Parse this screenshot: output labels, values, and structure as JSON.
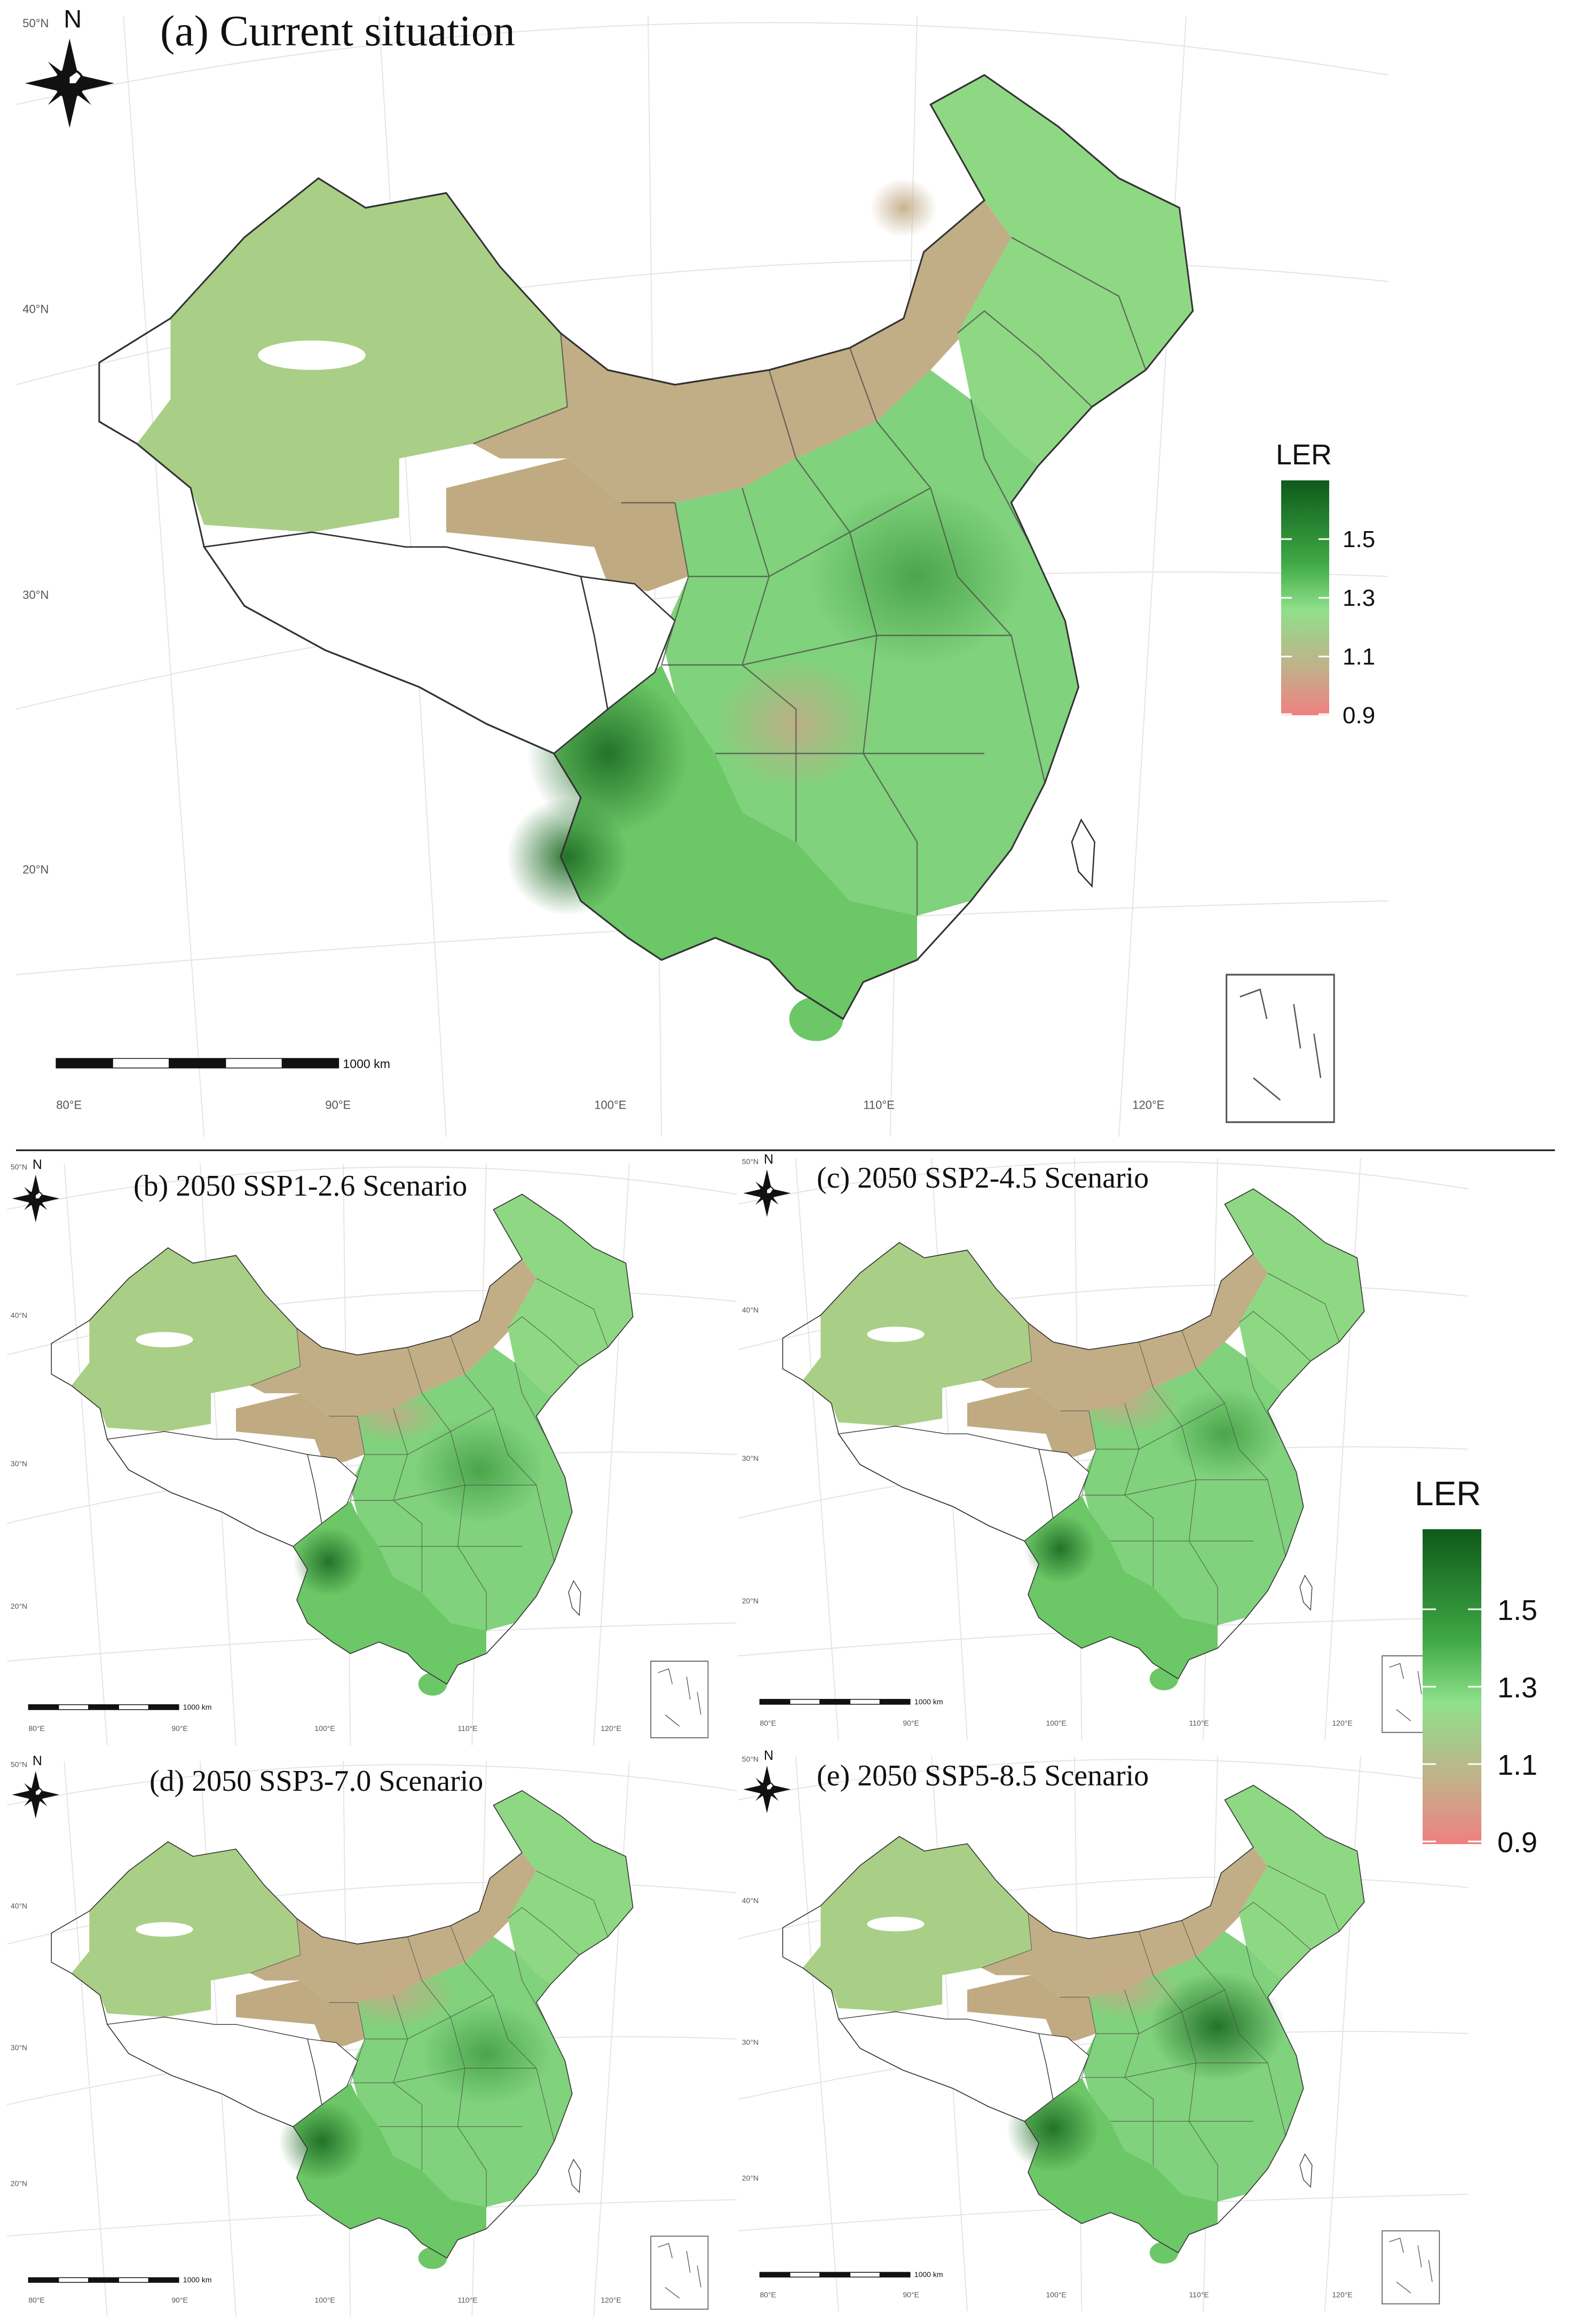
{
  "panels": [
    {
      "title": "(a) Current situation",
      "lat_labels": [
        "50°N",
        "40°N",
        "30°N",
        "20°N"
      ],
      "lon_labels": [
        "80°E",
        "90°E",
        "100°E",
        "110°E",
        "120°E"
      ],
      "scale_label": "1000 km",
      "variant": "current"
    },
    {
      "title": "(b) 2050 SSP1-2.6 Scenario",
      "lat_labels": [
        "50°N",
        "40°N",
        "30°N",
        "20°N"
      ],
      "lon_labels": [
        "80°E",
        "90°E",
        "100°E",
        "110°E",
        "120°E"
      ],
      "scale_label": "1000 km",
      "variant": "ssp126"
    },
    {
      "title": "(c) 2050 SSP2-4.5 Scenario",
      "lat_labels": [
        "50°N",
        "40°N",
        "30°N",
        "20°N"
      ],
      "lon_labels": [
        "80°E",
        "90°E",
        "100°E",
        "110°E",
        "120°E"
      ],
      "scale_label": "1000 km",
      "variant": "ssp245"
    },
    {
      "title": "(d) 2050 SSP3-7.0 Scenario",
      "lat_labels": [
        "50°N",
        "40°N",
        "30°N",
        "20°N"
      ],
      "lon_labels": [
        "80°E",
        "90°E",
        "100°E",
        "110°E",
        "120°E"
      ],
      "scale_label": "1000 km",
      "variant": "ssp370"
    },
    {
      "title": "(e) 2050 SSP5-8.5 Scenario",
      "lat_labels": [
        "50°N",
        "40°N",
        "30°N",
        "20°N"
      ],
      "lon_labels": [
        "80°E",
        "90°E",
        "100°E",
        "110°E",
        "120°E"
      ],
      "scale_label": "1000 km",
      "variant": "ssp585"
    }
  ],
  "compass_label": "N",
  "legends": [
    {
      "title": "LER",
      "ticks": [
        "1.5",
        "1.3",
        "1.1",
        "0.9"
      ]
    },
    {
      "title": "LER",
      "ticks": [
        "1.5",
        "1.3",
        "1.1",
        "0.9"
      ]
    }
  ],
  "colors": {
    "high": "#0e5a1a",
    "mid": "#5fc85f",
    "light": "#8fe08a",
    "tan": "#c2b08a",
    "low": "#f08080"
  }
}
